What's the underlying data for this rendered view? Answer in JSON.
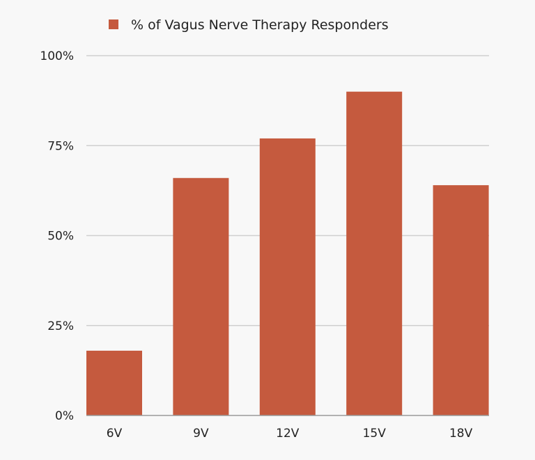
{
  "chart_data": {
    "type": "bar",
    "categories": [
      "6V",
      "9V",
      "12V",
      "15V",
      "18V"
    ],
    "series": [
      {
        "name": "% of Vagus Nerve Therapy Responders",
        "values": [
          18,
          66,
          77,
          90,
          64
        ],
        "color": "#c55a3e"
      }
    ],
    "ylim": [
      0,
      100
    ],
    "yticks": [
      0,
      25,
      50,
      75,
      100
    ],
    "ytick_labels": [
      "0%",
      "25%",
      "50%",
      "75%",
      "100%"
    ],
    "grid": true,
    "legend": "top-center"
  }
}
